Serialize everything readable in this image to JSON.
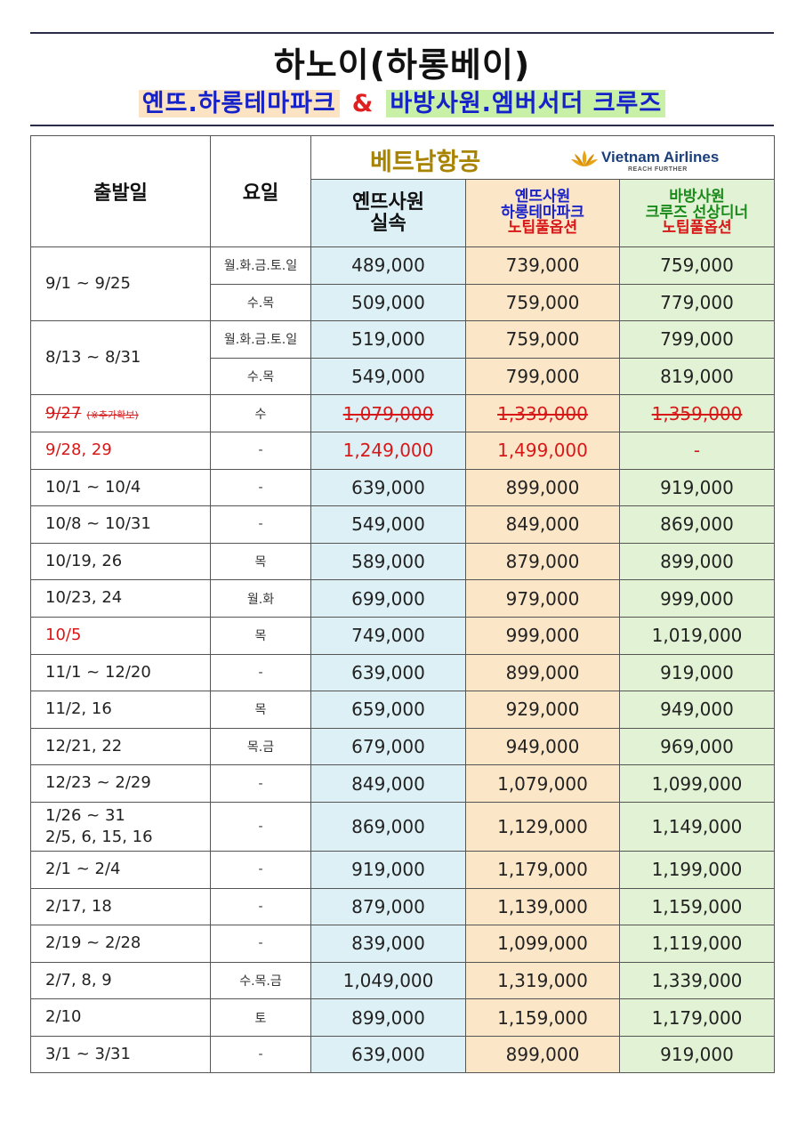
{
  "header": {
    "title": "하노이(하롱베이)",
    "subtitle_part1": "옌뜨.하롱테마파크",
    "subtitle_amp": "&",
    "subtitle_part2": "바방사원.엠버서더 크루즈"
  },
  "table": {
    "col_date": "출발일",
    "col_day": "요일",
    "airline_name": "베트남항공",
    "airline_logo": {
      "name": "Vietnam Airlines",
      "tagline": "REACH FURTHER",
      "icon": "lotus-logo-icon"
    },
    "product1": {
      "line1": "옌뜨사원",
      "line2": "실속"
    },
    "product2": {
      "line1": "옌뜨사원",
      "line2": "하롱테마파크",
      "line3": "노팁풀옵션"
    },
    "product3": {
      "line1": "바방사원",
      "line2": "크루즈 선상디너",
      "line3": "노팁풀옵션"
    },
    "groups": [
      {
        "date": "9/1  ~  9/25",
        "rows": [
          {
            "day": "월.화.금.토.일",
            "p1": "489,000",
            "p2": "739,000",
            "p3": "759,000"
          },
          {
            "day": "수.목",
            "p1": "509,000",
            "p2": "759,000",
            "p3": "779,000"
          }
        ]
      },
      {
        "date": "8/13  ~  8/31",
        "rows": [
          {
            "day": "월.화.금.토.일",
            "p1": "519,000",
            "p2": "759,000",
            "p3": "799,000"
          },
          {
            "day": "수.목",
            "p1": "549,000",
            "p2": "799,000",
            "p3": "819,000"
          }
        ]
      }
    ],
    "rows": [
      {
        "date": "9/27",
        "note": "(※추가확보)",
        "day": "수",
        "p1": "1,079,000",
        "p2": "1,339,000",
        "p3": "1,359,000",
        "style": "strike"
      },
      {
        "date": "9/28,  29",
        "day": "-",
        "p1": "1,249,000",
        "p2": "1,499,000",
        "p3": "-",
        "style": "red"
      },
      {
        "date": "10/1  ~  10/4",
        "day": "-",
        "p1": "639,000",
        "p2": "899,000",
        "p3": "919,000"
      },
      {
        "date": "10/8  ~  10/31",
        "day": "-",
        "p1": "549,000",
        "p2": "849,000",
        "p3": "869,000"
      },
      {
        "date": "10/19,  26",
        "day": "목",
        "p1": "589,000",
        "p2": "879,000",
        "p3": "899,000"
      },
      {
        "date": "10/23,  24",
        "day": "월.화",
        "p1": "699,000",
        "p2": "979,000",
        "p3": "999,000"
      },
      {
        "date": "10/5",
        "day": "목",
        "p1": "749,000",
        "p2": "999,000",
        "p3": "1,019,000",
        "style": "red-date"
      },
      {
        "date": "11/1  ~  12/20",
        "day": "-",
        "p1": "639,000",
        "p2": "899,000",
        "p3": "919,000"
      },
      {
        "date": "11/2,  16",
        "day": "목",
        "p1": "659,000",
        "p2": "929,000",
        "p3": "949,000"
      },
      {
        "date": "12/21,  22",
        "day": "목.금",
        "p1": "679,000",
        "p2": "949,000",
        "p3": "969,000"
      },
      {
        "date": "12/23  ~  2/29",
        "day": "-",
        "p1": "849,000",
        "p2": "1,079,000",
        "p3": "1,099,000"
      },
      {
        "date": "1/26  ~  31",
        "date2": "2/5,  6,  15,  16",
        "day": "-",
        "p1": "869,000",
        "p2": "1,129,000",
        "p3": "1,149,000",
        "tall": true
      },
      {
        "date": "2/1  ~  2/4",
        "day": "-",
        "p1": "919,000",
        "p2": "1,179,000",
        "p3": "1,199,000"
      },
      {
        "date": "2/17,  18",
        "day": "-",
        "p1": "879,000",
        "p2": "1,139,000",
        "p3": "1,159,000"
      },
      {
        "date": "2/19  ~  2/28",
        "day": "-",
        "p1": "839,000",
        "p2": "1,099,000",
        "p3": "1,119,000"
      },
      {
        "date": "2/7,  8,  9",
        "day": "수.목.금",
        "p1": "1,049,000",
        "p2": "1,319,000",
        "p3": "1,339,000"
      },
      {
        "date": "2/10",
        "day": "토",
        "p1": "899,000",
        "p2": "1,159,000",
        "p3": "1,179,000"
      },
      {
        "date": "3/1  ~  3/31",
        "day": "-",
        "p1": "639,000",
        "p2": "899,000",
        "p3": "919,000"
      }
    ]
  }
}
